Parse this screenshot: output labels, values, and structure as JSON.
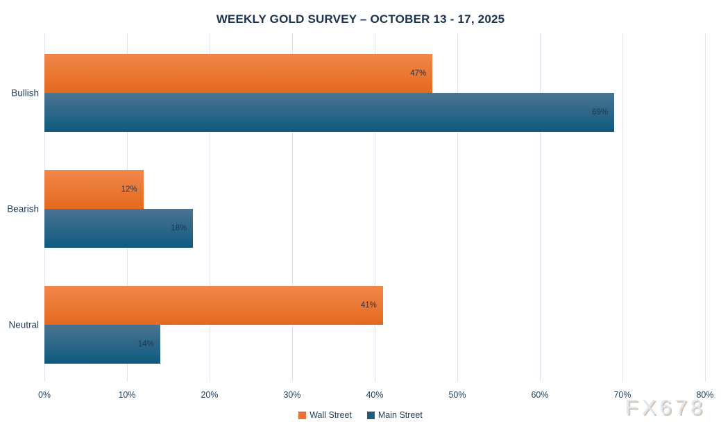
{
  "watermark": "FX678",
  "chart_data": {
    "type": "bar",
    "orientation": "horizontal",
    "title": "WEEKLY GOLD SURVEY – OCTOBER 13 - 17, 2025",
    "categories": [
      "Bullish",
      "Bearish",
      "Neutral"
    ],
    "series": [
      {
        "name": "Wall Street",
        "values": [
          47,
          12,
          41
        ],
        "data_labels": [
          "47%",
          "12%",
          "41%"
        ],
        "color_top": "#F0874A",
        "color_bottom": "#E5691D",
        "legend_color": "#E97132"
      },
      {
        "name": "Main Street",
        "values": [
          69,
          18,
          14
        ],
        "data_labels": [
          "69%",
          "18%",
          "14%"
        ],
        "color_top": "#4A7490",
        "color_bottom": "#0E5A80",
        "legend_color": "#1F5C7E"
      }
    ],
    "xlim": [
      0,
      80
    ],
    "x_ticks": [
      "0%",
      "10%",
      "20%",
      "30%",
      "40%",
      "50%",
      "60%",
      "70%",
      "80%"
    ],
    "grid": true,
    "gridline_color": "#DBE6F2",
    "legend_position": "bottom-center",
    "xlabel": "",
    "ylabel": ""
  }
}
